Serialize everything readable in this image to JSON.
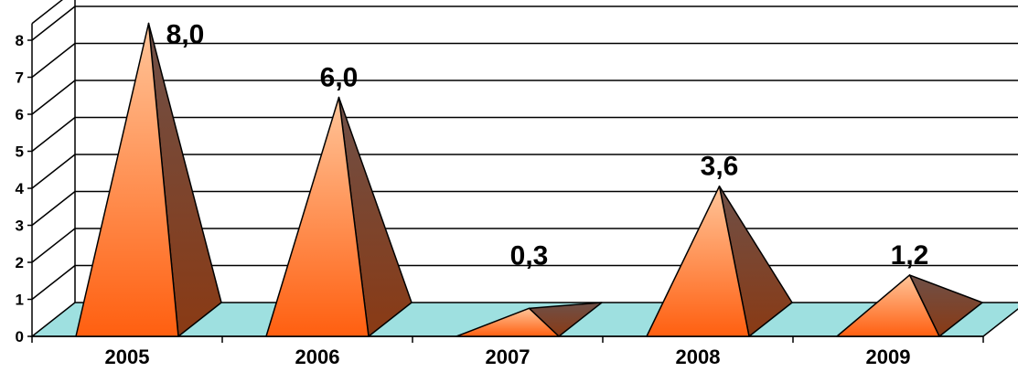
{
  "chart_data": {
    "type": "bar",
    "style": "3d-pyramid",
    "categories": [
      "2005",
      "2006",
      "2007",
      "2008",
      "2009"
    ],
    "values": [
      8.0,
      6.0,
      0.3,
      3.6,
      1.2
    ],
    "data_labels": [
      "8,0",
      "6,0",
      "0,3",
      "3,6",
      "1,2"
    ],
    "y_ticks": [
      "0",
      "1",
      "2",
      "3",
      "4",
      "5",
      "6",
      "7",
      "8"
    ],
    "ylim": [
      0,
      8
    ],
    "grid": true,
    "legend": "none",
    "colors": {
      "pyramid_light": "#ffb07a",
      "pyramid_front": "#ff6a1a",
      "pyramid_side_dark": "#7a3a1c",
      "pyramid_side_mid": "#a0523a",
      "floor": "#9ee0e0",
      "gridline": "#000000"
    }
  }
}
